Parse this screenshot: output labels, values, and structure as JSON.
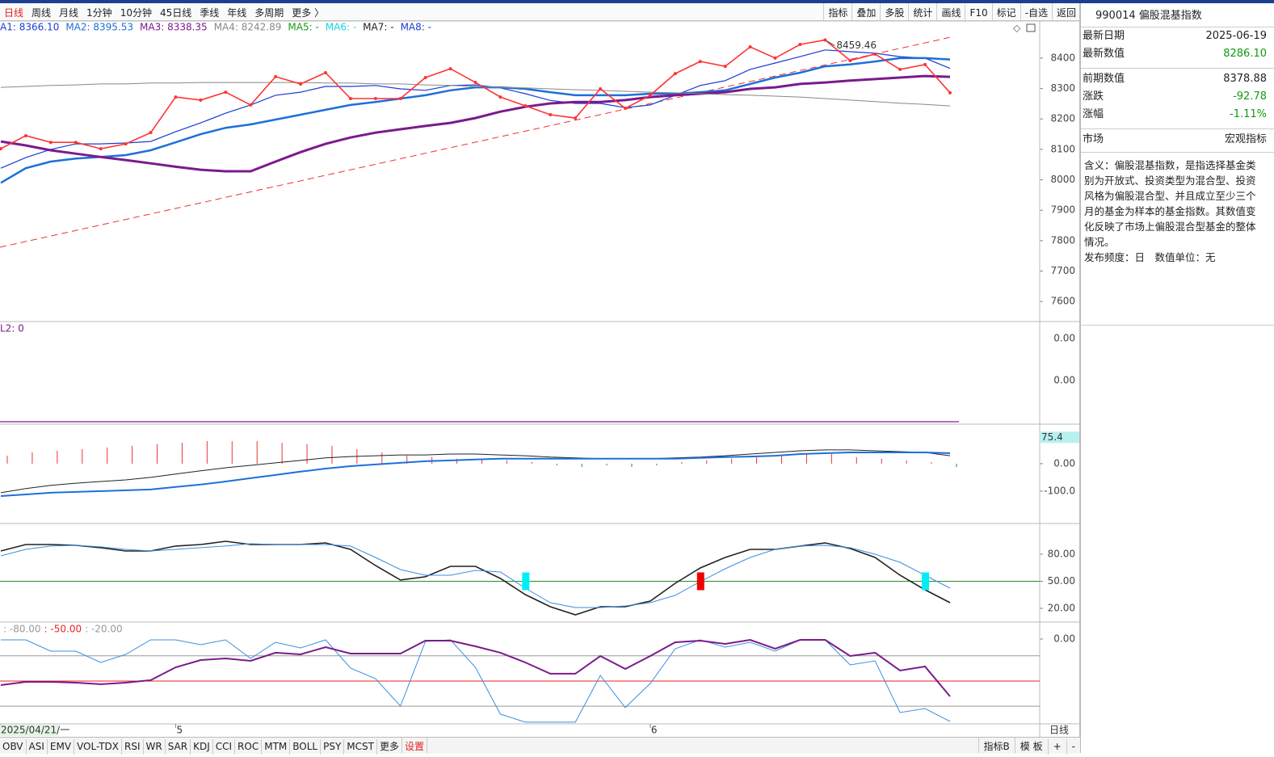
{
  "toolbar": {
    "left": [
      {
        "label": "日线",
        "color": "#e02020"
      },
      {
        "label": "周线"
      },
      {
        "label": "月线"
      },
      {
        "label": "1分钟"
      },
      {
        "label": "10分钟"
      },
      {
        "label": "45日线"
      },
      {
        "label": "季线"
      },
      {
        "label": "年线"
      },
      {
        "label": "多周期"
      },
      {
        "label": "更多 〉"
      }
    ],
    "right": [
      "指标",
      "叠加",
      "多股",
      "统计",
      "画线",
      "F10",
      "标记",
      "-自选",
      "返回"
    ]
  },
  "ma_legend": [
    {
      "label": "A1: 8366.10",
      "color": "#1a3cd6"
    },
    {
      "label": "MA2: 8395.53",
      "color": "#1e6fd9"
    },
    {
      "label": "MA3: 8338.35",
      "color": "#7b1a8c"
    },
    {
      "label": "MA4: 8242.89",
      "color": "#888888"
    },
    {
      "label": "MA5: -",
      "color": "#1a9a1a"
    },
    {
      "label": "MA6: -",
      "color": "#19d3e0"
    },
    {
      "label": "MA7: -",
      "color": "#222222"
    },
    {
      "label": "MA8: -",
      "color": "#1a3cd6"
    }
  ],
  "main": {
    "ylim": [
      7534,
      8522
    ],
    "yticks": [
      8400,
      8300,
      8200,
      8100,
      8000,
      7900,
      7800,
      7700,
      7600
    ],
    "peak_label": "8459.46",
    "peak_index": 33,
    "series": [
      {
        "color": "#1a3cd6",
        "width": 1.2,
        "values": [
          8038,
          8073,
          8100,
          8118,
          8118,
          8121,
          8126,
          8158,
          8187,
          8219,
          8246,
          8278,
          8288,
          8307,
          8307,
          8310,
          8299,
          8294,
          8310,
          8312,
          8302,
          8283,
          8261,
          8251,
          8251,
          8237,
          8246,
          8278,
          8310,
          8326,
          8363,
          8384,
          8405,
          8427,
          8421,
          8416,
          8405,
          8400,
          8366.1
        ]
      },
      {
        "color": "#1e6fd9",
        "width": 2.5,
        "values": [
          7990,
          8038,
          8060,
          8070,
          8075,
          8081,
          8097,
          8123,
          8150,
          8171,
          8182,
          8198,
          8214,
          8230,
          8246,
          8256,
          8267,
          8278,
          8294,
          8304,
          8304,
          8299,
          8288,
          8278,
          8278,
          8278,
          8283,
          8283,
          8288,
          8294,
          8315,
          8336,
          8352,
          8373,
          8379,
          8389,
          8400,
          8400,
          8395.53
        ]
      },
      {
        "color": "#7b1a8c",
        "width": 3,
        "values": [
          8126,
          8113,
          8097,
          8086,
          8075,
          8065,
          8054,
          8043,
          8033,
          8028,
          8028,
          8060,
          8091,
          8118,
          8139,
          8155,
          8166,
          8177,
          8187,
          8203,
          8224,
          8240,
          8251,
          8256,
          8256,
          8262,
          8272,
          8278,
          8283,
          8288,
          8299,
          8304,
          8315,
          8320,
          8326,
          8331,
          8336,
          8341,
          8338.35
        ]
      },
      {
        "color": "#888888",
        "width": 1,
        "values": [
          8304,
          8307,
          8310,
          8312,
          8315,
          8315,
          8318,
          8318,
          8320,
          8320,
          8320,
          8320,
          8320,
          8318,
          8318,
          8315,
          8315,
          8312,
          8310,
          8307,
          8304,
          8302,
          8299,
          8296,
          8294,
          8291,
          8288,
          8286,
          8283,
          8280,
          8278,
          8275,
          8272,
          8267,
          8262,
          8257,
          8252,
          8248,
          8242.89
        ]
      },
      {
        "color": "#ff3333",
        "width": 1.6,
        "dots": true,
        "values": [
          8102,
          8145,
          8123,
          8123,
          8102,
          8118,
          8155,
          8272,
          8262,
          8288,
          8246,
          8339,
          8315,
          8352,
          8267,
          8267,
          8267,
          8336,
          8365,
          8320,
          8272,
          8243,
          8214,
          8203,
          8299,
          8235,
          8278,
          8349,
          8389,
          8373,
          8437,
          8400,
          8445,
          8459.46,
          8392,
          8413,
          8363,
          8378.88,
          8286.1
        ]
      }
    ]
  },
  "panel2": {
    "label": "L2: 0",
    "tick_labels": [
      "0.00",
      "0.00"
    ]
  },
  "macd": {
    "ylim": [
      -218,
      144
    ],
    "yticks": [
      {
        "value": 0,
        "label": "0.00"
      },
      {
        "value": -100,
        "label": "-100.0"
      }
    ],
    "current_value": 75.4,
    "bars": [
      29,
      41,
      47,
      53,
      59,
      65,
      71,
      76,
      82,
      82,
      82,
      76,
      71,
      65,
      53,
      41,
      29,
      24,
      18,
      18,
      12,
      6,
      -6,
      -12,
      -6,
      -12,
      -6,
      6,
      12,
      18,
      24,
      29,
      35,
      35,
      24,
      18,
      12,
      6,
      -12
    ],
    "series": [
      {
        "color": "#222222",
        "values": [
          -106,
          -91,
          -79,
          -71,
          -65,
          -59,
          -50,
          -38,
          -26,
          -15,
          -6,
          3,
          12,
          21,
          26,
          29,
          32,
          32,
          35,
          35,
          32,
          29,
          24,
          21,
          18,
          18,
          18,
          21,
          24,
          29,
          35,
          41,
          47,
          50,
          50,
          47,
          44,
          41,
          29
        ]
      },
      {
        "color": "#1e6fd9",
        "values": [
          -118,
          -112,
          -106,
          -103,
          -100,
          -97,
          -94,
          -85,
          -76,
          -65,
          -53,
          -41,
          -29,
          -18,
          -9,
          -3,
          3,
          9,
          12,
          15,
          18,
          18,
          18,
          18,
          18,
          18,
          18,
          18,
          21,
          24,
          26,
          29,
          35,
          38,
          41,
          41,
          41,
          41,
          38
        ]
      }
    ]
  },
  "kdj": {
    "ylim": [
      4.8,
      114
    ],
    "yticks": [
      {
        "value": 80,
        "label": "80.00"
      },
      {
        "value": 50,
        "label": "50.00"
      },
      {
        "value": 20,
        "label": "20.00"
      }
    ],
    "ref_line": 50,
    "series": [
      {
        "color": "#222222",
        "values": [
          83.6,
          90.7,
          90.7,
          89.8,
          87.2,
          83.6,
          83.6,
          89,
          90.7,
          94.3,
          90.7,
          90.7,
          90.7,
          92.5,
          85.4,
          67.5,
          51.4,
          55,
          66.6,
          66.6,
          53.1,
          35.2,
          21.8,
          12.9,
          21.8,
          21.8,
          28.1,
          47.8,
          64.8,
          76.4,
          85.4,
          85.4,
          89,
          92.5,
          86.3,
          76.4,
          56.7,
          40.6,
          26.3
        ]
      },
      {
        "color": "#3a8fe0",
        "values": [
          78.2,
          85.4,
          89,
          89.8,
          88.1,
          85.4,
          83.6,
          85.4,
          87.2,
          89,
          91.6,
          90.7,
          90.7,
          90.7,
          89,
          76.4,
          63,
          56.7,
          56.7,
          62.1,
          60.3,
          42.4,
          26.3,
          20.9,
          20.9,
          22.7,
          26.3,
          34.4,
          49.6,
          63.9,
          76.4,
          85.4,
          89,
          89.8,
          87.2,
          80,
          71,
          56.7,
          42.4
        ]
      }
    ],
    "signals": [
      {
        "index": 21,
        "color": "#00eef5"
      },
      {
        "index": 28,
        "color": "#ee0000"
      },
      {
        "index": 37,
        "color": "#00eef5"
      }
    ]
  },
  "wr": {
    "ylim": [
      -101,
      20.2
    ],
    "yticks": [
      {
        "value": 0,
        "label": "0.00"
      }
    ],
    "levels": [
      {
        "value": -80,
        "label": ": -80.00",
        "color": "#999999"
      },
      {
        "value": -50,
        "label": ": -50.00",
        "color": "#ee2222"
      },
      {
        "value": -20,
        "label": ": -20.00",
        "color": "#999999"
      }
    ],
    "series": [
      {
        "color": "#3a8fe0",
        "values": [
          -1,
          -1,
          -14.4,
          -14.4,
          -27.9,
          -18.3,
          -1,
          -1,
          -6.7,
          -1,
          -23.1,
          -3.8,
          -10.6,
          -1,
          -34.6,
          -47.1,
          -79.8,
          -2.9,
          -1,
          -33.7,
          -89.4,
          -99,
          -99,
          -99,
          -43.3,
          -81.7,
          -52.9,
          -11.5,
          -1,
          -9.6,
          -3.8,
          -14.4,
          -1,
          -1,
          -30.8,
          -26,
          -87.5,
          -82.7,
          -98.1
        ]
      },
      {
        "color": "#7b1a8c",
        "values": [
          -54.8,
          -51,
          -51,
          -51.9,
          -53.8,
          -51.9,
          -49,
          -33.7,
          -25,
          -23.1,
          -26,
          -16.3,
          -18.3,
          -9.6,
          -17.3,
          -17.3,
          -17.3,
          -1.9,
          -1.9,
          -8.7,
          -16.3,
          -27.9,
          -41.3,
          -41.3,
          -20.2,
          -35.6,
          -20.2,
          -3.8,
          -1.9,
          -5.8,
          -1,
          -11.5,
          -1,
          -1,
          -20.2,
          -16.3,
          -37.5,
          -32.7,
          -68.3
        ]
      }
    ]
  },
  "date_axis": {
    "labels": [
      {
        "index": 0,
        "label": "2025/04/21/一"
      },
      {
        "index": 7,
        "label": "5"
      },
      {
        "index": 26,
        "label": "6"
      }
    ],
    "period": "日线"
  },
  "bottom": {
    "left": [
      {
        "label": "OBV"
      },
      {
        "label": "ASI"
      },
      {
        "label": "EMV"
      },
      {
        "label": "VOL-TDX"
      },
      {
        "label": "RSI"
      },
      {
        "label": "WR"
      },
      {
        "label": "SAR"
      },
      {
        "label": "KDJ"
      },
      {
        "label": "CCI"
      },
      {
        "label": "ROC"
      },
      {
        "label": "MTM"
      },
      {
        "label": "BOLL"
      },
      {
        "label": "PSY"
      },
      {
        "label": "MCST"
      },
      {
        "label": "更多"
      },
      {
        "label": "设置",
        "color": "#e02020"
      }
    ],
    "right": [
      "指标B",
      "模 板",
      "+",
      "-"
    ]
  },
  "side": {
    "title": "990014 偏股混基指数",
    "rows": [
      {
        "label": "最新日期",
        "value": "2025-06-19"
      },
      {
        "label": "最新数值",
        "value": "8286.10",
        "color": "#119911"
      },
      {
        "label": "前期数值",
        "value": "8378.88"
      },
      {
        "label": "涨跌",
        "value": "-92.78",
        "color": "#119911"
      },
      {
        "label": "涨幅",
        "value": "-1.11%",
        "color": "#119911"
      },
      {
        "label": "市场",
        "value": "宏观指标"
      }
    ],
    "description": "含义：偏股混基指数，是指选择基金类别为开放式、投资类型为混合型、投资风格为偏股混合型、并且成立至少三个月的基金为样本的基金指数。其数值变化反映了市场上偏股混合型基金的整体情况。",
    "frequency": "发布频度：日　数值单位：无"
  }
}
